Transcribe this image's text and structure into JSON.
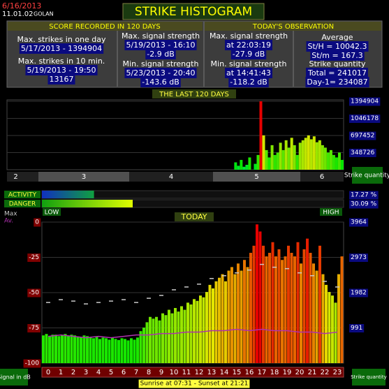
{
  "header": {
    "date": "6/16/2013",
    "version": "11.01.02",
    "station": "GOLAN",
    "title": "STRIKE HISTOGRAM"
  },
  "summary": {
    "score_heading": "SCORE RECORDED IN 120 DAYS",
    "today_heading": "TODAY'S OBSERVATION",
    "columns": [
      [
        {
          "label": "Max. strikes in one day",
          "values": [
            "5/17/2013 - 1394904"
          ]
        },
        {
          "label": "Max. strikes in 10 min.",
          "values": [
            "5/19/2013 - 19:50",
            "13167"
          ]
        }
      ],
      [
        {
          "label": "Max. signal strength",
          "values": [
            "5/19/2013 - 16:10",
            "-2.9 dB"
          ]
        },
        {
          "label": "Min. signal strength",
          "values": [
            "5/23/2013 - 20:40",
            "-143.6 dB"
          ]
        }
      ],
      [
        {
          "label": "Max. signal strength",
          "values": [
            "at 22:03:19",
            "-27.9 dB"
          ]
        },
        {
          "label": "Min. signal strength",
          "values": [
            "at 14:41:43",
            "-118.2 dB"
          ]
        }
      ],
      [
        {
          "label": "Average",
          "values": [
            "St/H = 10042.3",
            "St/m = 167.3"
          ]
        },
        {
          "label": "Strike quantity",
          "values": [
            "Total  = 241017",
            "Day-1= 234087"
          ]
        }
      ]
    ]
  },
  "days_chart": {
    "type": "bar",
    "title": "THE LAST 120 DAYS",
    "ylim": [
      0,
      1394904
    ],
    "yticks": [
      1394904,
      1046178,
      697452,
      348726
    ],
    "months": [
      "2",
      "3",
      "4",
      "5",
      "6"
    ],
    "y_label": "Strike quantity",
    "values": [
      0,
      0,
      0,
      0,
      0,
      0,
      0,
      0,
      0,
      0,
      0,
      0,
      0,
      0,
      0,
      0,
      0,
      0,
      0,
      0,
      0,
      0,
      0,
      0,
      0,
      0,
      0,
      0,
      0,
      0,
      0,
      0,
      0,
      0,
      0,
      0,
      0,
      0,
      0,
      0,
      0,
      0,
      0,
      0,
      0,
      0,
      0,
      0,
      0,
      0,
      0,
      0,
      0,
      0,
      0,
      0,
      0,
      0,
      0,
      0,
      0,
      0,
      0,
      0,
      0,
      0,
      0,
      0,
      0,
      0,
      0,
      0,
      0,
      0,
      0,
      0,
      0,
      0,
      0,
      0,
      0,
      150000,
      80000,
      200000,
      60000,
      100000,
      250000,
      0,
      120000,
      300000,
      1394904,
      700000,
      400000,
      250000,
      500000,
      300000,
      350000,
      550000,
      400000,
      600000,
      450000,
      650000,
      500000,
      300000,
      550000,
      600000,
      650000,
      700000,
      620000,
      680000,
      560000,
      600000,
      500000,
      450000,
      350000,
      400000,
      300000,
      250000,
      350000,
      200000
    ]
  },
  "levels": {
    "xlim": [
      0,
      100
    ],
    "low": "LOW",
    "high": "HIGH",
    "bars": [
      {
        "label": "ACTIVITY",
        "value": 17.27,
        "value_label": "17.27 %"
      },
      {
        "label": "DANGER",
        "value": 30.09,
        "value_label": "30.09 %"
      }
    ]
  },
  "today_chart": {
    "type": "bar",
    "title": "TODAY",
    "ylim": [
      0,
      3964
    ],
    "yticks": [
      3964,
      2973,
      1982,
      991
    ],
    "signal_lim": [
      -100,
      0
    ],
    "signal_ticks": [
      0,
      -25,
      -50,
      -75,
      -100
    ],
    "xticks": [
      0,
      1,
      2,
      3,
      4,
      5,
      6,
      7,
      8,
      9,
      10,
      11,
      12,
      13,
      14,
      15,
      16,
      17,
      18,
      19,
      20,
      21,
      22,
      23
    ],
    "left_label": "Signal in dB",
    "right_label": "Strike quantity",
    "footer": "Sunrise at 07:31  -  Sunset at 21:21",
    "values": [
      780,
      820,
      760,
      800,
      800,
      760,
      790,
      820,
      760,
      800,
      780,
      750,
      740,
      780,
      760,
      720,
      700,
      740,
      680,
      720,
      700,
      660,
      720,
      680,
      650,
      700,
      680,
      640,
      700,
      660,
      720,
      900,
      1000,
      1150,
      1300,
      1250,
      1300,
      1200,
      1400,
      1350,
      1500,
      1400,
      1550,
      1450,
      1600,
      1500,
      1700,
      1650,
      1800,
      1750,
      1900,
      1850,
      2000,
      2200,
      2100,
      2300,
      2400,
      2500,
      2300,
      2600,
      2700,
      2500,
      2800,
      2600,
      2900,
      2700,
      3100,
      3300,
      3900,
      3700,
      3300,
      3000,
      3100,
      3400,
      3000,
      3200,
      2900,
      3000,
      3300,
      3100,
      3000,
      3400,
      2800,
      3200,
      3500,
      3100,
      2800,
      2600,
      3300,
      2500,
      2200,
      2000,
      1900,
      1700,
      2500,
      3000
    ],
    "series": [
      {
        "name": "Max",
        "color": "#c8c8c8",
        "values": [
          -57,
          -55,
          -56,
          -58,
          -57,
          -56,
          -55,
          -57,
          -54,
          -52,
          -48,
          -46,
          -44,
          -40,
          -38,
          -36,
          -34,
          -30,
          -32,
          -33,
          -36,
          -38,
          -42,
          -46
        ]
      },
      {
        "name": "Av.",
        "color": "#b030b0",
        "values": [
          -81,
          -80,
          -81,
          -82,
          -81,
          -82,
          -81,
          -80,
          -80,
          -79,
          -79,
          -78,
          -78,
          -77,
          -77,
          -76,
          -77,
          -76,
          -77,
          -77,
          -78,
          -78,
          -79,
          -78
        ]
      }
    ]
  }
}
